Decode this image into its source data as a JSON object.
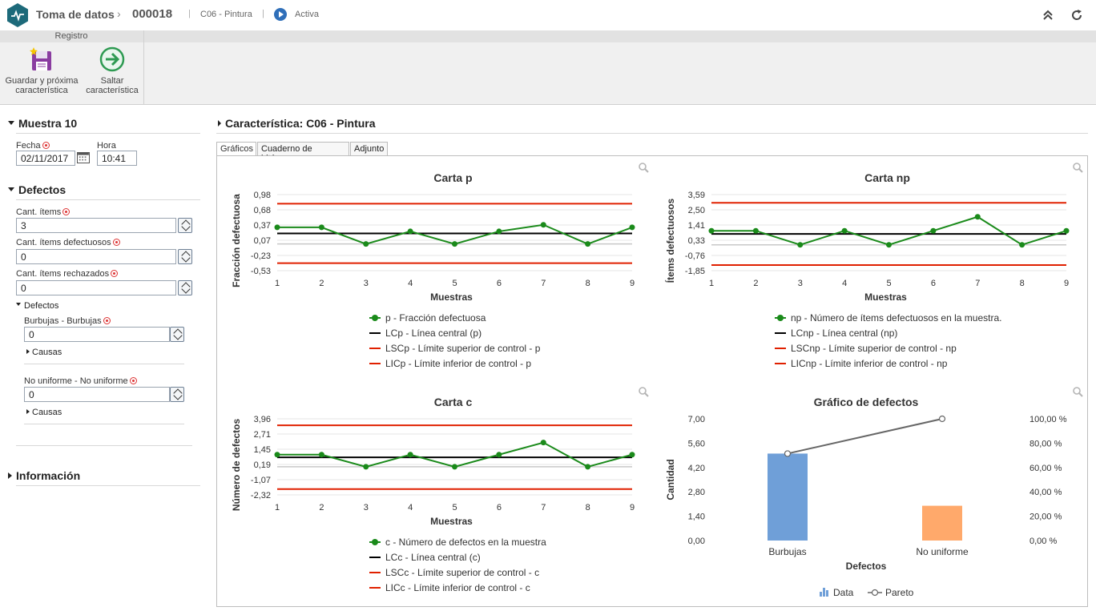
{
  "topbar": {
    "title": "Toma de datos",
    "record_number": "000018",
    "characteristic": "C06 - Pintura",
    "status": "Activa"
  },
  "ribbon": {
    "group_label": "Registro",
    "save_next_line1": "Guardar y próxima",
    "save_next_line2": "característica",
    "skip_line1": "Saltar",
    "skip_line2": "característica"
  },
  "sample": {
    "title": "Muestra 10",
    "date_label": "Fecha",
    "date_value": "02/11/2017",
    "time_label": "Hora",
    "time_value": "10:41"
  },
  "defects_section": {
    "title": "Defectos",
    "items_label": "Cant. ítems",
    "items_value": "3",
    "defective_label": "Cant. ítems defectuosos",
    "defective_value": "0",
    "rejected_label": "Cant. ítems rechazados",
    "rejected_value": "0",
    "sub_title": "Defectos",
    "defect1_label": "Burbujas - Burbujas",
    "defect1_value": "0",
    "defect1_causes": "Causas",
    "defect2_label": "No uniforme - No uniforme",
    "defect2_value": "0",
    "defect2_causes": "Causas"
  },
  "info_section": {
    "title": "Información"
  },
  "main": {
    "characteristic_title": "Característica: C06 - Pintura",
    "tabs": [
      {
        "label": "Gráficos"
      },
      {
        "label": "Cuaderno de bitácora"
      },
      {
        "label": "Adjunto"
      }
    ]
  },
  "colors": {
    "series_green": "#1a8a1a",
    "center_black": "#000000",
    "limit_red": "#e02000",
    "bar_blue": "#6f9fd8",
    "bar_orange": "#ffa96b",
    "pareto_gray": "#666666",
    "accent_teal": "#1d6a7a"
  },
  "chart_data": [
    {
      "type": "line",
      "title": "Carta p",
      "xlabel": "Muestras",
      "ylabel": "Fracción defectuosa",
      "x": [
        1,
        2,
        3,
        4,
        5,
        6,
        7,
        8,
        9
      ],
      "y_ticks": [
        "0,98",
        "0,68",
        "0,37",
        "0,07",
        "-0,23",
        "-0,53"
      ],
      "ylim": [
        -0.53,
        0.98
      ],
      "series": [
        {
          "name": "p - Fracción defectuosa",
          "kind": "points",
          "values": [
            0.33,
            0.33,
            0.0,
            0.25,
            0.0,
            0.25,
            0.38,
            0.0,
            0.33
          ]
        },
        {
          "name": "LCp - Línea central (p)",
          "kind": "center",
          "value": 0.21
        },
        {
          "name": "LSCp - Límite superior de control - p",
          "kind": "upper",
          "value": 0.8
        },
        {
          "name": "LICp - Límite inferior de control - p",
          "kind": "lower",
          "value": -0.38
        }
      ],
      "baseline": 0.0
    },
    {
      "type": "line",
      "title": "Carta np",
      "xlabel": "Muestras",
      "ylabel": "Ítems defectuosos",
      "x": [
        1,
        2,
        3,
        4,
        5,
        6,
        7,
        8,
        9
      ],
      "y_ticks": [
        "3,59",
        "2,50",
        "1,41",
        "0,33",
        "-0,76",
        "-1,85"
      ],
      "ylim": [
        -1.85,
        3.59
      ],
      "series": [
        {
          "name": "np - Número de ítems defectuosos en la muestra.",
          "kind": "points",
          "values": [
            1,
            1,
            0,
            1,
            0,
            1,
            2,
            0,
            1
          ]
        },
        {
          "name": "LCnp - Línea central (np)",
          "kind": "center",
          "value": 0.78
        },
        {
          "name": "LSCnp - Límite superior de control - np",
          "kind": "upper",
          "value": 3.0
        },
        {
          "name": "LICnp - Límite inferior de control - np",
          "kind": "lower",
          "value": -1.45
        }
      ],
      "baseline": 0.0
    },
    {
      "type": "line",
      "title": "Carta c",
      "xlabel": "Muestras",
      "ylabel": "Número de defectos",
      "x": [
        1,
        2,
        3,
        4,
        5,
        6,
        7,
        8,
        9
      ],
      "y_ticks": [
        "3,96",
        "2,71",
        "1,45",
        "0,19",
        "-1,07",
        "-2,32"
      ],
      "ylim": [
        -2.32,
        3.96
      ],
      "series": [
        {
          "name": "c - Número de defectos en la muestra",
          "kind": "points",
          "values": [
            1,
            1,
            0,
            1,
            0,
            1,
            2,
            0,
            1
          ]
        },
        {
          "name": "LCc - Línea central (c)",
          "kind": "center",
          "value": 0.78
        },
        {
          "name": "LSCc - Límite superior de control - c",
          "kind": "upper",
          "value": 3.42
        },
        {
          "name": "LICc - Límite inferior de control - c",
          "kind": "lower",
          "value": -1.84
        }
      ],
      "baseline": 0.0
    },
    {
      "type": "bar",
      "title": "Gráfico de defectos",
      "xlabel": "Defectos",
      "ylabel": "Cantidad",
      "categories": [
        "Burbujas",
        "No uniforme"
      ],
      "y_ticks": [
        "7,00",
        "5,60",
        "4,20",
        "2,80",
        "1,40",
        "0,00"
      ],
      "y2_ticks": [
        "100,00 %",
        "80,00 %",
        "60,00 %",
        "40,00 %",
        "20,00 %",
        "0,00 %"
      ],
      "ylim": [
        0,
        7
      ],
      "y2lim": [
        0,
        100
      ],
      "series": [
        {
          "name": "Data",
          "kind": "bar",
          "values": [
            5,
            2
          ]
        },
        {
          "name": "Pareto",
          "kind": "pareto",
          "values": [
            71.43,
            100
          ]
        }
      ]
    }
  ]
}
